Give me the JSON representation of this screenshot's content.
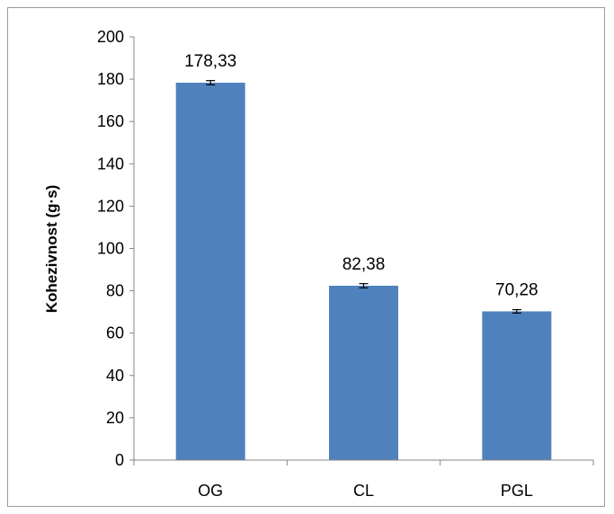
{
  "chart_data": {
    "type": "bar",
    "title": "",
    "xlabel": "",
    "ylabel": "Kohezivnost (g·s)",
    "categories": [
      "OG",
      "CL",
      "PGL"
    ],
    "values": [
      178.33,
      82.38,
      70.28
    ],
    "value_labels": [
      "178,33",
      "82,38",
      "70,28"
    ],
    "error": [
      1.0,
      1.0,
      0.8
    ],
    "ylim": [
      0,
      200
    ],
    "yticks": [
      0,
      20,
      40,
      60,
      80,
      100,
      120,
      140,
      160,
      180,
      200
    ],
    "grid": false,
    "legend": "none",
    "colors": {
      "bar": "#4f81bd",
      "axis": "#868686",
      "error_bar": "#000000"
    }
  }
}
